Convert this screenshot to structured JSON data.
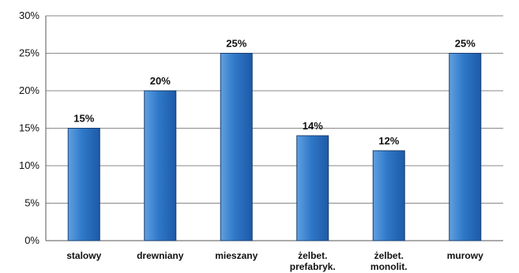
{
  "chart_data": {
    "type": "bar",
    "categories": [
      "stalowy",
      "drewniany",
      "mieszany",
      "żelbet. prefabryk.",
      "żelbet. monolit.",
      "murowy"
    ],
    "category_lines": [
      [
        "stalowy"
      ],
      [
        "drewniany"
      ],
      [
        "mieszany"
      ],
      [
        "żelbet.",
        "prefabryk."
      ],
      [
        "żelbet.",
        "monolit."
      ],
      [
        "murowy"
      ]
    ],
    "values": [
      15,
      20,
      25,
      14,
      12,
      25
    ],
    "data_labels": [
      "15%",
      "20%",
      "25%",
      "14%",
      "12%",
      "25%"
    ],
    "y_ticks": [
      0,
      5,
      10,
      15,
      20,
      25,
      30
    ],
    "y_tick_labels": [
      "0%",
      "5%",
      "10%",
      "15%",
      "20%",
      "25%",
      "30%"
    ],
    "ylim": [
      0,
      30
    ],
    "grid": true,
    "legend": "none",
    "colors": {
      "bar_top": "#5fa0e0",
      "bar_mid": "#2f78c8",
      "bar_bottom": "#1d5aa6",
      "bar_edge": "#1a3f70",
      "grid": "#8a8a8a",
      "axis": "#555555"
    }
  }
}
